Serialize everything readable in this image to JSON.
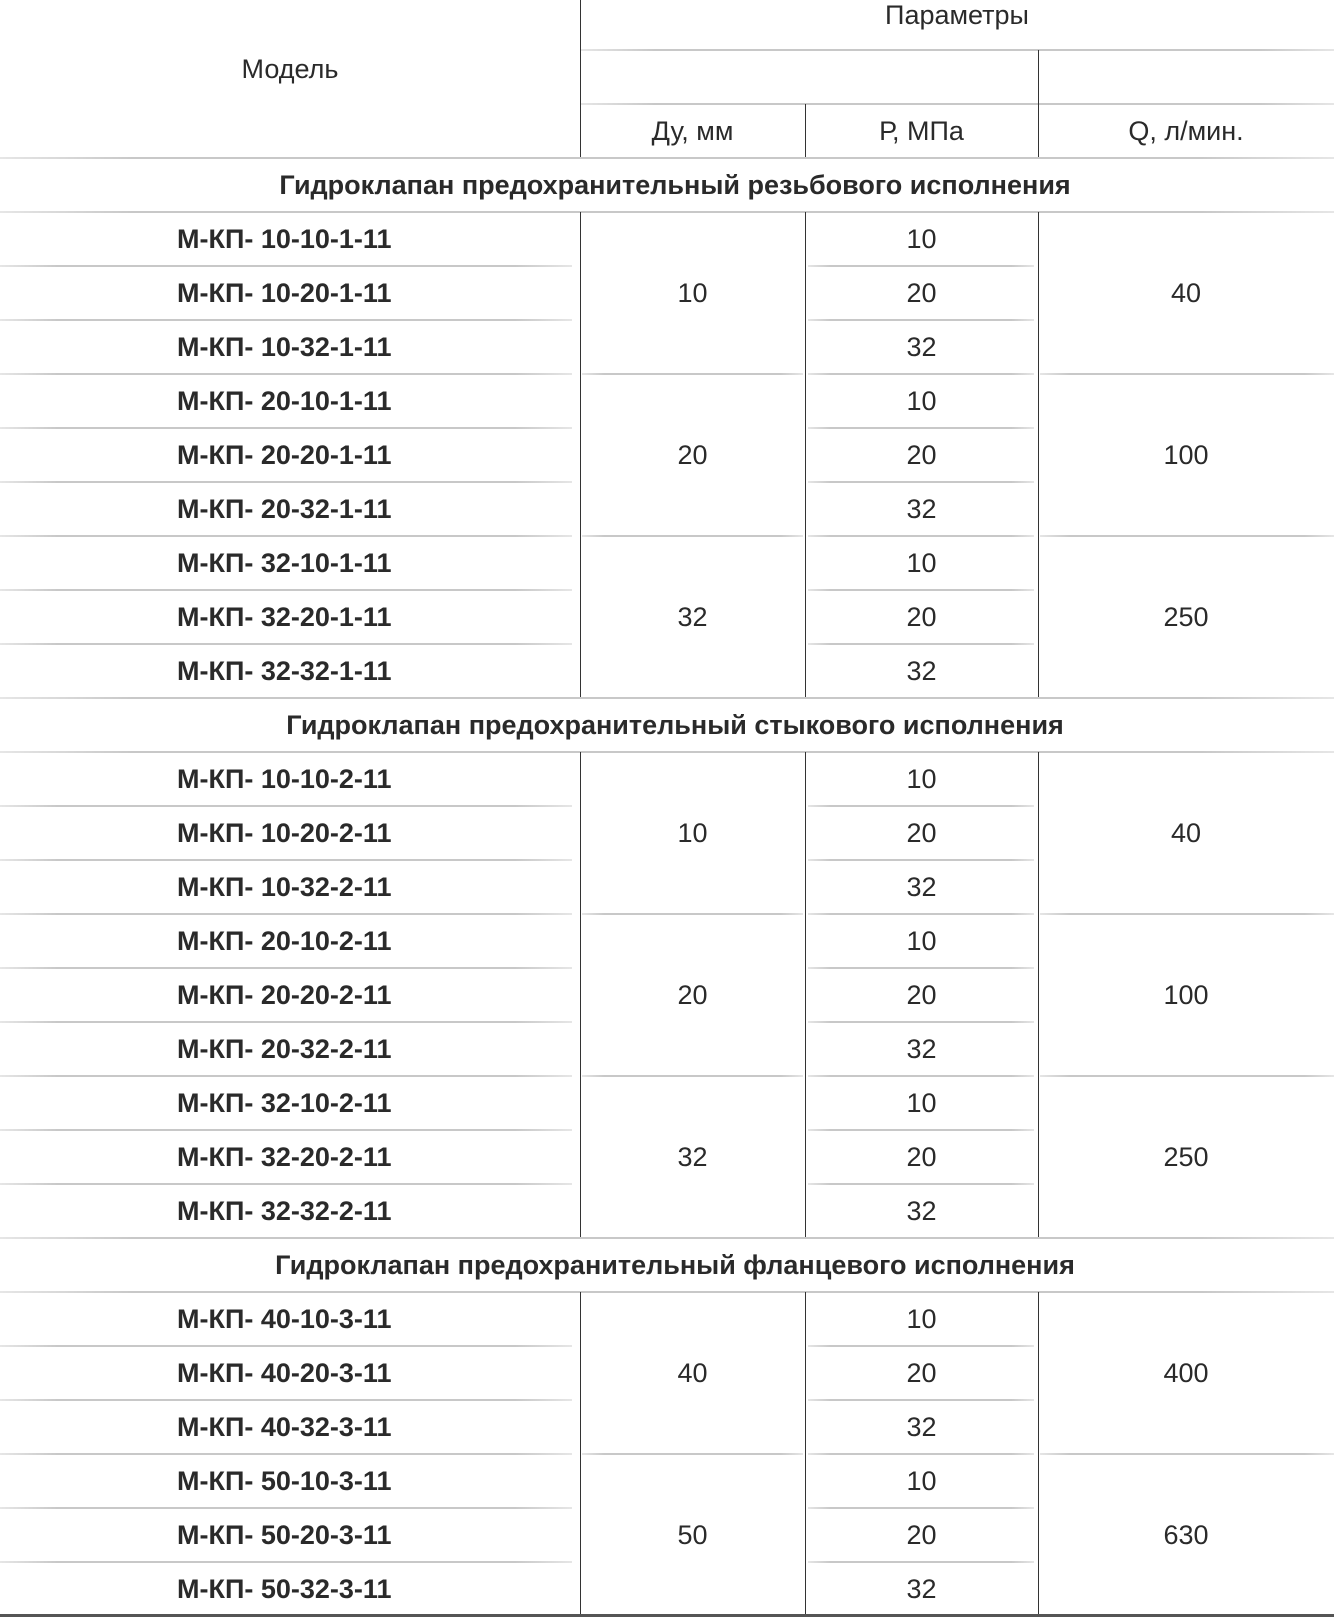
{
  "header": {
    "model": "Модель",
    "params": "Параметры",
    "du": "Ду, мм",
    "p": "Р, МПа",
    "q": "Q, л/мин."
  },
  "sections": [
    {
      "title": "Гидроклапан предохранительный резьбового исполнения",
      "groups": [
        {
          "du": "10",
          "q": "40",
          "rows": [
            {
              "model": "М-КП- 10-10-1-11",
              "p": "10"
            },
            {
              "model": "М-КП- 10-20-1-11",
              "p": "20"
            },
            {
              "model": "М-КП- 10-32-1-11",
              "p": "32"
            }
          ]
        },
        {
          "du": "20",
          "q": "100",
          "rows": [
            {
              "model": "М-КП- 20-10-1-11",
              "p": "10"
            },
            {
              "model": "М-КП- 20-20-1-11",
              "p": "20"
            },
            {
              "model": "М-КП- 20-32-1-11",
              "p": "32"
            }
          ]
        },
        {
          "du": "32",
          "q": "250",
          "rows": [
            {
              "model": "М-КП- 32-10-1-11",
              "p": "10"
            },
            {
              "model": "М-КП- 32-20-1-11",
              "p": "20"
            },
            {
              "model": "М-КП- 32-32-1-11",
              "p": "32"
            }
          ]
        }
      ]
    },
    {
      "title": "Гидроклапан предохранительный стыкового исполнения",
      "groups": [
        {
          "du": "10",
          "q": "40",
          "rows": [
            {
              "model": "М-КП- 10-10-2-11",
              "p": "10"
            },
            {
              "model": "М-КП- 10-20-2-11",
              "p": "20"
            },
            {
              "model": "М-КП- 10-32-2-11",
              "p": "32"
            }
          ]
        },
        {
          "du": "20",
          "q": "100",
          "rows": [
            {
              "model": "М-КП- 20-10-2-11",
              "p": "10"
            },
            {
              "model": "М-КП- 20-20-2-11",
              "p": "20"
            },
            {
              "model": "М-КП- 20-32-2-11",
              "p": "32"
            }
          ]
        },
        {
          "du": "32",
          "q": "250",
          "rows": [
            {
              "model": "М-КП- 32-10-2-11",
              "p": "10"
            },
            {
              "model": "М-КП- 32-20-2-11",
              "p": "20"
            },
            {
              "model": "М-КП- 32-32-2-11",
              "p": "32"
            }
          ]
        }
      ]
    },
    {
      "title": "Гидроклапан предохранительный фланцевого исполнения",
      "groups": [
        {
          "du": "40",
          "q": "400",
          "rows": [
            {
              "model": "М-КП- 40-10-3-11",
              "p": "10"
            },
            {
              "model": "М-КП- 40-20-3-11",
              "p": "20"
            },
            {
              "model": "М-КП- 40-32-3-11",
              "p": "32"
            }
          ]
        },
        {
          "du": "50",
          "q": "630",
          "rows": [
            {
              "model": "М-КП- 50-10-3-11",
              "p": "10"
            },
            {
              "model": "М-КП- 50-20-3-11",
              "p": "20"
            },
            {
              "model": "М-КП- 50-32-3-11",
              "p": "32"
            }
          ]
        }
      ]
    }
  ]
}
